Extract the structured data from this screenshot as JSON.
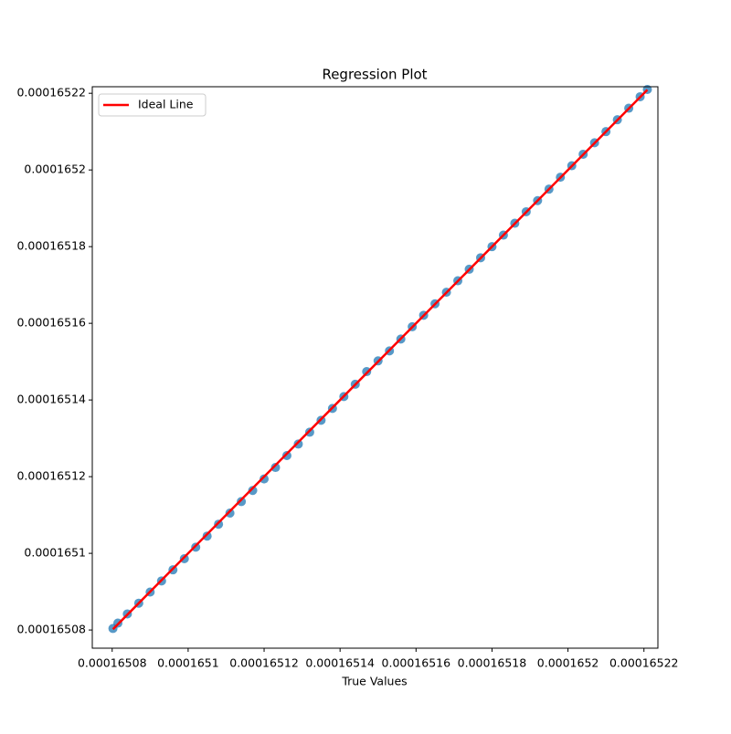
{
  "chart_data": {
    "type": "scatter",
    "title": "Regression Plot",
    "x_label": "True Values",
    "xlim": [
      0.000165074766,
      0.000165223675
    ],
    "ylim": [
      0.00016507526,
      0.00016522171
    ],
    "xticks": [
      0.00016508,
      0.0001651,
      0.00016512,
      0.00016514,
      0.00016516,
      0.00016518,
      0.0001652,
      0.00016522
    ],
    "yticks": [
      0.00016508,
      0.0001651,
      0.00016512,
      0.00016514,
      0.00016516,
      0.00016518,
      0.0001652,
      0.00016522
    ],
    "legend": "upper left",
    "series": [
      {
        "color": "#1f77b4",
        "x": [
          0.0001650802,
          0.0001650815,
          0.000165084,
          0.000165087,
          0.00016509,
          0.000165093,
          0.000165096,
          0.000165099,
          0.000165102,
          0.000165105,
          0.000165108,
          0.000165111,
          0.000165114,
          0.000165117,
          0.00016512,
          0.000165123,
          0.000165126,
          0.000165129,
          0.000165132,
          0.000165135,
          0.000165138,
          0.000165141,
          0.000165144,
          0.000165147,
          0.00016515,
          0.000165153,
          0.000165156,
          0.000165159,
          0.000165162,
          0.000165165,
          0.000165168,
          0.000165171,
          0.000165174,
          0.000165177,
          0.00016518,
          0.000165183,
          0.000165186,
          0.000165189,
          0.000165192,
          0.000165195,
          0.000165198,
          0.000165201,
          0.000165204,
          0.000165207,
          0.00016521,
          0.000165213,
          0.000165216,
          0.000165219,
          0.0001652209
        ],
        "values": [
          0.0001650804,
          0.0001650818,
          0.0001650842,
          0.000165087,
          0.0001650899,
          0.0001650928,
          0.0001650957,
          0.0001650986,
          0.0001651016,
          0.0001651045,
          0.0001651076,
          0.0001651105,
          0.0001651135,
          0.0001651164,
          0.0001651194,
          0.0001651224,
          0.0001651255,
          0.0001651285,
          0.0001651316,
          0.0001651347,
          0.0001651378,
          0.0001651409,
          0.0001651441,
          0.0001651474,
          0.0001651502,
          0.0001651528,
          0.0001651559,
          0.0001651591,
          0.0001651621,
          0.0001651651,
          0.0001651681,
          0.0001651711,
          0.0001651741,
          0.0001651771,
          0.00016518,
          0.000165183,
          0.0001651861,
          0.0001651891,
          0.000165192,
          0.000165195,
          0.0001651981,
          0.0001652011,
          0.0001652041,
          0.0001652071,
          0.00016521,
          0.0001652131,
          0.0001652161,
          0.0001652191,
          0.000165221
        ]
      },
      {
        "name": "Ideal Line",
        "color": "#ff0000",
        "line": true,
        "x": [
          0.0001650802,
          0.0001652209
        ],
        "values": [
          0.0001650802,
          0.0001652209
        ]
      }
    ]
  }
}
